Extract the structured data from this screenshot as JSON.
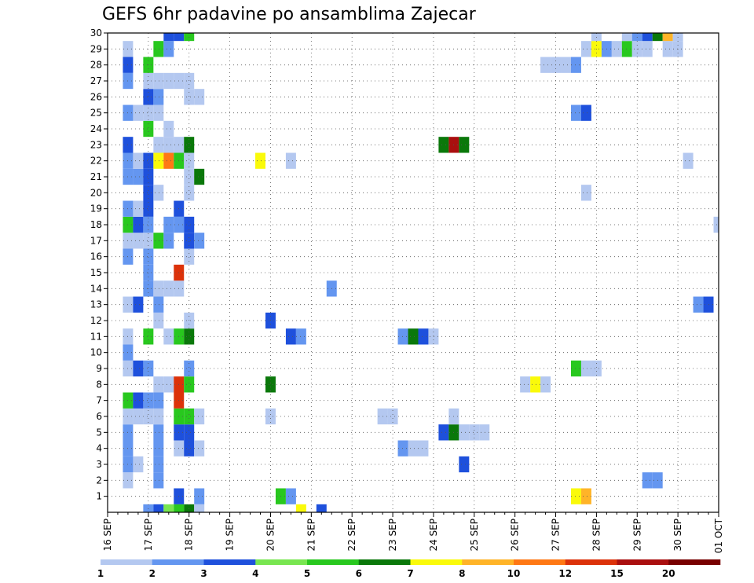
{
  "chart_data": {
    "type": "heatmap",
    "title": "GEFS 6hr padavine po ansamblima Zajecar",
    "x_tick_labels": [
      "16 SEP",
      "17 SEP",
      "18 SEP",
      "19 SEP",
      "20 SEP",
      "21 SEP",
      "22 SEP",
      "23 SEP",
      "24 SEP",
      "25 SEP",
      "26 SEP",
      "27 SEP",
      "28 SEP",
      "29 SEP",
      "30 SEP",
      "01 OCT"
    ],
    "x_range_hours": [
      0,
      360
    ],
    "x_step_hours": 6,
    "y_range": [
      0,
      30
    ],
    "y_ticks": [
      1,
      2,
      3,
      4,
      5,
      6,
      7,
      8,
      9,
      10,
      11,
      12,
      13,
      14,
      15,
      16,
      17,
      18,
      19,
      20,
      21,
      22,
      23,
      24,
      25,
      26,
      27,
      28,
      29,
      30
    ],
    "grid": true,
    "color_levels": [
      1,
      2,
      3,
      4,
      5,
      6,
      7,
      8,
      10,
      12,
      15,
      20
    ],
    "colorbar_labels": [
      "1",
      "2",
      "3",
      "4",
      "5",
      "6",
      "7",
      "8",
      "10",
      "12",
      "15",
      "20"
    ],
    "colors": [
      "#b4c8f0",
      "#6496f0",
      "#1e50dc",
      "#78e650",
      "#28c81e",
      "#0a780a",
      "#fafa0a",
      "#ffb428",
      "#ff7814",
      "#dc320a",
      "#aa0f0f",
      "#780000"
    ],
    "cells": [
      [
        0,
        24,
        2
      ],
      [
        0,
        30,
        3
      ],
      [
        0,
        36,
        4
      ],
      [
        0,
        42,
        5
      ],
      [
        0,
        48,
        6
      ],
      [
        0,
        54,
        1
      ],
      [
        0,
        114,
        7
      ],
      [
        0,
        126,
        3
      ],
      [
        1,
        42,
        3
      ],
      [
        1,
        54,
        2
      ],
      [
        1,
        102,
        5
      ],
      [
        1,
        108,
        2
      ],
      [
        1,
        276,
        7
      ],
      [
        1,
        282,
        8
      ],
      [
        2,
        12,
        1
      ],
      [
        2,
        30,
        2
      ],
      [
        2,
        318,
        2
      ],
      [
        2,
        324,
        2
      ],
      [
        3,
        12,
        2
      ],
      [
        3,
        18,
        1
      ],
      [
        3,
        30,
        2
      ],
      [
        3,
        210,
        3
      ],
      [
        4,
        12,
        2
      ],
      [
        4,
        30,
        2
      ],
      [
        4,
        42,
        1
      ],
      [
        4,
        48,
        3
      ],
      [
        4,
        54,
        1
      ],
      [
        4,
        174,
        2
      ],
      [
        4,
        180,
        1
      ],
      [
        4,
        186,
        1
      ],
      [
        5,
        12,
        2
      ],
      [
        5,
        30,
        2
      ],
      [
        5,
        42,
        3
      ],
      [
        5,
        48,
        3
      ],
      [
        5,
        198,
        3
      ],
      [
        5,
        204,
        6
      ],
      [
        5,
        210,
        1
      ],
      [
        5,
        216,
        1
      ],
      [
        5,
        222,
        1
      ],
      [
        6,
        12,
        1
      ],
      [
        6,
        18,
        1
      ],
      [
        6,
        24,
        1
      ],
      [
        6,
        30,
        1
      ],
      [
        6,
        42,
        5
      ],
      [
        6,
        48,
        5
      ],
      [
        6,
        54,
        1
      ],
      [
        6,
        96,
        1
      ],
      [
        6,
        162,
        1
      ],
      [
        6,
        168,
        1
      ],
      [
        6,
        204,
        1
      ],
      [
        7,
        12,
        5
      ],
      [
        7,
        18,
        3
      ],
      [
        7,
        24,
        2
      ],
      [
        7,
        30,
        2
      ],
      [
        7,
        42,
        10
      ],
      [
        8,
        30,
        1
      ],
      [
        8,
        36,
        1
      ],
      [
        8,
        42,
        10
      ],
      [
        8,
        48,
        5
      ],
      [
        8,
        96,
        6
      ],
      [
        8,
        246,
        1
      ],
      [
        8,
        252,
        7
      ],
      [
        8,
        258,
        1
      ],
      [
        9,
        12,
        1
      ],
      [
        9,
        18,
        3
      ],
      [
        9,
        24,
        2
      ],
      [
        9,
        48,
        2
      ],
      [
        9,
        276,
        5
      ],
      [
        9,
        282,
        1
      ],
      [
        9,
        288,
        1
      ],
      [
        10,
        12,
        2
      ],
      [
        11,
        12,
        1
      ],
      [
        11,
        24,
        5
      ],
      [
        11,
        36,
        1
      ],
      [
        11,
        42,
        5
      ],
      [
        11,
        48,
        6
      ],
      [
        11,
        108,
        3
      ],
      [
        11,
        114,
        2
      ],
      [
        11,
        174,
        2
      ],
      [
        11,
        180,
        6
      ],
      [
        11,
        186,
        3
      ],
      [
        11,
        192,
        1
      ],
      [
        12,
        30,
        1
      ],
      [
        12,
        48,
        1
      ],
      [
        12,
        96,
        3
      ],
      [
        13,
        12,
        1
      ],
      [
        13,
        30,
        2
      ],
      [
        13,
        18,
        3
      ],
      [
        13,
        348,
        2
      ],
      [
        13,
        354,
        3
      ],
      [
        14,
        24,
        2
      ],
      [
        14,
        30,
        1
      ],
      [
        14,
        36,
        1
      ],
      [
        14,
        42,
        1
      ],
      [
        14,
        132,
        2
      ],
      [
        15,
        24,
        2
      ],
      [
        15,
        42,
        10
      ],
      [
        16,
        12,
        2
      ],
      [
        16,
        24,
        2
      ],
      [
        16,
        48,
        1
      ],
      [
        17,
        12,
        1
      ],
      [
        17,
        18,
        1
      ],
      [
        17,
        24,
        1
      ],
      [
        17,
        30,
        5
      ],
      [
        17,
        36,
        2
      ],
      [
        17,
        48,
        3
      ],
      [
        17,
        54,
        2
      ],
      [
        18,
        12,
        5
      ],
      [
        18,
        18,
        3
      ],
      [
        18,
        24,
        2
      ],
      [
        18,
        36,
        2
      ],
      [
        18,
        42,
        2
      ],
      [
        18,
        48,
        3
      ],
      [
        18,
        360,
        1
      ],
      [
        19,
        12,
        2
      ],
      [
        19,
        18,
        1
      ],
      [
        19,
        24,
        3
      ],
      [
        19,
        42,
        3
      ],
      [
        20,
        24,
        3
      ],
      [
        20,
        30,
        1
      ],
      [
        20,
        48,
        1
      ],
      [
        20,
        282,
        1
      ],
      [
        21,
        12,
        2
      ],
      [
        21,
        18,
        2
      ],
      [
        21,
        24,
        3
      ],
      [
        21,
        48,
        1
      ],
      [
        21,
        54,
        6
      ],
      [
        22,
        12,
        2
      ],
      [
        22,
        18,
        1
      ],
      [
        22,
        24,
        3
      ],
      [
        22,
        30,
        7
      ],
      [
        22,
        36,
        9
      ],
      [
        22,
        42,
        5
      ],
      [
        22,
        48,
        1
      ],
      [
        22,
        90,
        7
      ],
      [
        22,
        108,
        1
      ],
      [
        22,
        342,
        1
      ],
      [
        23,
        12,
        3
      ],
      [
        23,
        30,
        1
      ],
      [
        23,
        36,
        1
      ],
      [
        23,
        42,
        1
      ],
      [
        23,
        48,
        6
      ],
      [
        23,
        198,
        6
      ],
      [
        23,
        204,
        11
      ],
      [
        23,
        210,
        6
      ],
      [
        24,
        24,
        5
      ],
      [
        24,
        36,
        1
      ],
      [
        25,
        12,
        2
      ],
      [
        25,
        18,
        1
      ],
      [
        25,
        24,
        1
      ],
      [
        25,
        30,
        1
      ],
      [
        25,
        276,
        2
      ],
      [
        25,
        282,
        3
      ],
      [
        26,
        24,
        3
      ],
      [
        26,
        30,
        2
      ],
      [
        26,
        48,
        1
      ],
      [
        26,
        54,
        1
      ],
      [
        27,
        12,
        2
      ],
      [
        27,
        24,
        1
      ],
      [
        27,
        30,
        1
      ],
      [
        27,
        36,
        1
      ],
      [
        27,
        42,
        1
      ],
      [
        27,
        48,
        1
      ],
      [
        28,
        12,
        3
      ],
      [
        28,
        24,
        5
      ],
      [
        28,
        258,
        1
      ],
      [
        28,
        264,
        1
      ],
      [
        28,
        270,
        1
      ],
      [
        28,
        276,
        2
      ],
      [
        29,
        12,
        1
      ],
      [
        29,
        30,
        5
      ],
      [
        29,
        36,
        2
      ],
      [
        29,
        282,
        1
      ],
      [
        29,
        288,
        7
      ],
      [
        29,
        294,
        2
      ],
      [
        29,
        300,
        1
      ],
      [
        29,
        306,
        5
      ],
      [
        29,
        312,
        1
      ],
      [
        29,
        318,
        1
      ],
      [
        29,
        330,
        1
      ],
      [
        29,
        336,
        1
      ],
      [
        30,
        36,
        3
      ],
      [
        30,
        42,
        3
      ],
      [
        30,
        48,
        5
      ],
      [
        30,
        288,
        1
      ],
      [
        30,
        306,
        1
      ],
      [
        30,
        312,
        2
      ],
      [
        30,
        318,
        3
      ],
      [
        30,
        324,
        6
      ],
      [
        30,
        330,
        8
      ],
      [
        30,
        336,
        1
      ]
    ]
  }
}
